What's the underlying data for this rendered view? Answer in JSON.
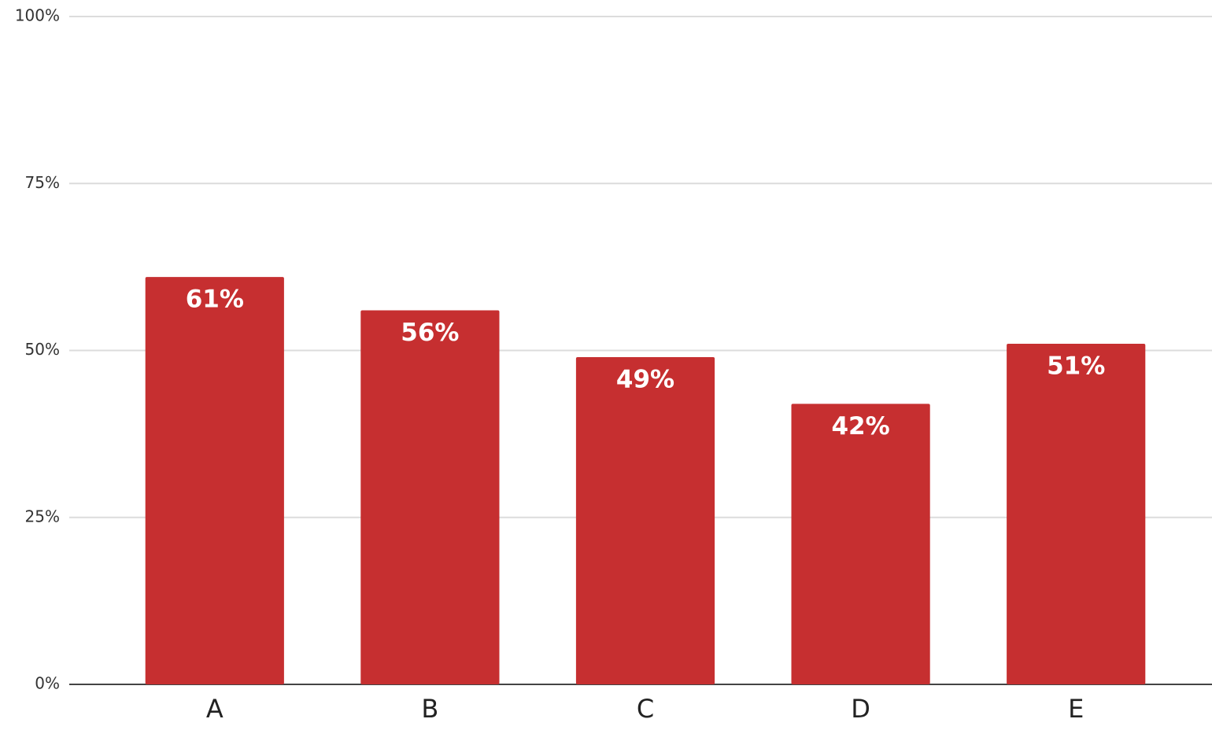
{
  "chart_data": {
    "type": "bar",
    "categories": [
      "A",
      "B",
      "C",
      "D",
      "E"
    ],
    "values": [
      61,
      56,
      49,
      42,
      51
    ],
    "value_labels": [
      "61%",
      "56%",
      "49%",
      "42%",
      "51%"
    ],
    "color": "#c62f30",
    "ylim": [
      0,
      100
    ],
    "yticks": [
      {
        "value": 0,
        "label": "0%"
      },
      {
        "value": 25,
        "label": "25%"
      },
      {
        "value": 50,
        "label": "50%"
      },
      {
        "value": 75,
        "label": "75%"
      },
      {
        "value": 100,
        "label": "100%"
      }
    ],
    "grid": true
  }
}
